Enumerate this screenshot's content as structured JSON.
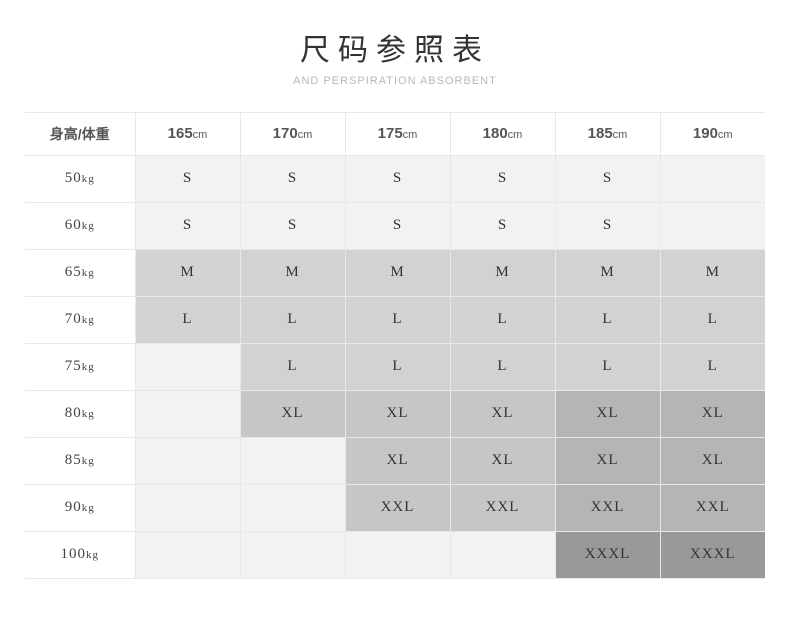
{
  "title": "尺码参照表",
  "subtitle": "AND PERSPIRATION ABSORBENT",
  "header_label": "身高/体重",
  "heights": [
    "165",
    "170",
    "175",
    "180",
    "185",
    "190"
  ],
  "height_unit": "cm",
  "weight_unit": "kg",
  "weights": [
    "50",
    "60",
    "65",
    "70",
    "75",
    "80",
    "85",
    "90",
    "100"
  ],
  "cells": [
    [
      {
        "v": "S",
        "c": "c-light"
      },
      {
        "v": "S",
        "c": "c-light"
      },
      {
        "v": "S",
        "c": "c-light"
      },
      {
        "v": "S",
        "c": "c-light"
      },
      {
        "v": "S",
        "c": "c-light"
      },
      {
        "v": "",
        "c": "c-light"
      }
    ],
    [
      {
        "v": "S",
        "c": "c-light"
      },
      {
        "v": "S",
        "c": "c-light"
      },
      {
        "v": "S",
        "c": "c-light"
      },
      {
        "v": "S",
        "c": "c-light"
      },
      {
        "v": "S",
        "c": "c-light"
      },
      {
        "v": "",
        "c": "c-light"
      }
    ],
    [
      {
        "v": "M",
        "c": "c-mid"
      },
      {
        "v": "M",
        "c": "c-mid"
      },
      {
        "v": "M",
        "c": "c-mid"
      },
      {
        "v": "M",
        "c": "c-mid"
      },
      {
        "v": "M",
        "c": "c-mid"
      },
      {
        "v": "M",
        "c": "c-mid"
      }
    ],
    [
      {
        "v": "L",
        "c": "c-mid"
      },
      {
        "v": "L",
        "c": "c-mid"
      },
      {
        "v": "L",
        "c": "c-mid"
      },
      {
        "v": "L",
        "c": "c-mid"
      },
      {
        "v": "L",
        "c": "c-mid"
      },
      {
        "v": "L",
        "c": "c-mid"
      }
    ],
    [
      {
        "v": "",
        "c": "c-light"
      },
      {
        "v": "L",
        "c": "c-mid"
      },
      {
        "v": "L",
        "c": "c-mid"
      },
      {
        "v": "L",
        "c": "c-mid"
      },
      {
        "v": "L",
        "c": "c-mid"
      },
      {
        "v": "L",
        "c": "c-mid"
      }
    ],
    [
      {
        "v": "",
        "c": "c-light"
      },
      {
        "v": "XL",
        "c": "c-midd"
      },
      {
        "v": "XL",
        "c": "c-midd"
      },
      {
        "v": "XL",
        "c": "c-midd"
      },
      {
        "v": "XL",
        "c": "c-dark"
      },
      {
        "v": "XL",
        "c": "c-dark"
      }
    ],
    [
      {
        "v": "",
        "c": "c-light"
      },
      {
        "v": "",
        "c": "c-light"
      },
      {
        "v": "XL",
        "c": "c-midd"
      },
      {
        "v": "XL",
        "c": "c-midd"
      },
      {
        "v": "XL",
        "c": "c-dark"
      },
      {
        "v": "XL",
        "c": "c-dark"
      }
    ],
    [
      {
        "v": "",
        "c": "c-light"
      },
      {
        "v": "",
        "c": "c-light"
      },
      {
        "v": "XXL",
        "c": "c-midd"
      },
      {
        "v": "XXL",
        "c": "c-midd"
      },
      {
        "v": "XXL",
        "c": "c-dark"
      },
      {
        "v": "XXL",
        "c": "c-dark"
      }
    ],
    [
      {
        "v": "",
        "c": "c-light"
      },
      {
        "v": "",
        "c": "c-light"
      },
      {
        "v": "",
        "c": "c-light"
      },
      {
        "v": "",
        "c": "c-light"
      },
      {
        "v": "XXXL",
        "c": "c-darker"
      },
      {
        "v": "XXXL",
        "c": "c-darker"
      }
    ]
  ],
  "col_widths": [
    "110",
    "105",
    "105",
    "105",
    "105",
    "105",
    "105"
  ]
}
